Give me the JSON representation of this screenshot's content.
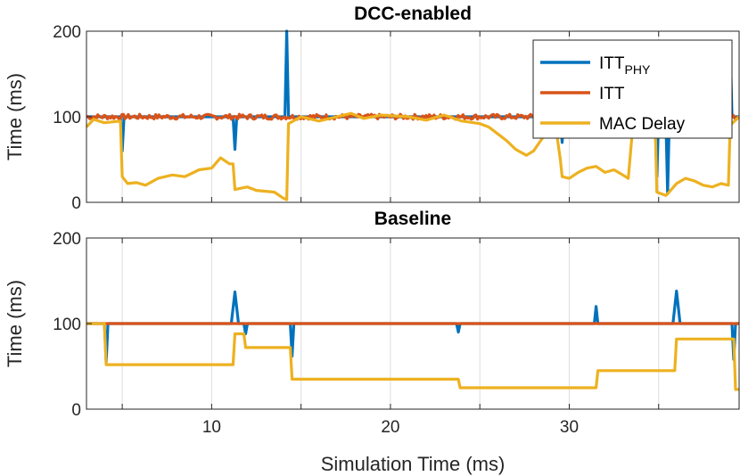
{
  "chart_data": [
    {
      "type": "line",
      "title": "DCC-enabled",
      "xlabel": "",
      "ylabel": "Time (ms)",
      "xlim": [
        3,
        39.5
      ],
      "ylim": [
        0,
        200
      ],
      "yticks": [
        "0",
        "100",
        "200"
      ],
      "grid": "vertical",
      "legend": "top-right",
      "series": [
        {
          "name": "ITT",
          "name_sub": "PHY",
          "color": "#0072BD",
          "points": [
            [
              3,
              100
            ],
            [
              4.9,
              100
            ],
            [
              5,
              60
            ],
            [
              5.1,
              100
            ],
            [
              11.2,
              100
            ],
            [
              11.3,
              62
            ],
            [
              11.4,
              100
            ],
            [
              14.1,
              100
            ],
            [
              14.2,
              200
            ],
            [
              14.3,
              100
            ],
            [
              29.5,
              100
            ],
            [
              29.6,
              70
            ],
            [
              29.7,
              100
            ],
            [
              34.8,
              100
            ],
            [
              34.9,
              30
            ],
            [
              35,
              100
            ],
            [
              35.4,
              100
            ],
            [
              35.5,
              10
            ],
            [
              35.6,
              100
            ],
            [
              38.9,
              100
            ],
            [
              39,
              188
            ],
            [
              39.1,
              100
            ],
            [
              39.5,
              100
            ]
          ]
        },
        {
          "name": "ITT",
          "color": "#D95319",
          "points": [
            [
              3,
              100
            ],
            [
              39.5,
              100
            ]
          ],
          "jitter": 3
        },
        {
          "name": "MAC Delay",
          "color": "#EDB120",
          "points": [
            [
              3,
              88
            ],
            [
              3.4,
              97
            ],
            [
              4,
              93
            ],
            [
              4.9,
              95
            ],
            [
              5,
              30
            ],
            [
              5.3,
              22
            ],
            [
              5.8,
              23
            ],
            [
              6.3,
              20
            ],
            [
              7,
              28
            ],
            [
              7.8,
              32
            ],
            [
              8.5,
              30
            ],
            [
              9.3,
              38
            ],
            [
              10,
              40
            ],
            [
              10.5,
              52
            ],
            [
              11,
              45
            ],
            [
              11.2,
              45
            ],
            [
              11.3,
              15
            ],
            [
              12,
              18
            ],
            [
              12.5,
              14
            ],
            [
              13.5,
              12
            ],
            [
              14,
              5
            ],
            [
              14.2,
              3
            ],
            [
              14.3,
              92
            ],
            [
              15,
              100
            ],
            [
              16,
              95
            ],
            [
              17,
              100
            ],
            [
              17.8,
              104
            ],
            [
              18.5,
              98
            ],
            [
              19.5,
              102
            ],
            [
              21,
              100
            ],
            [
              22,
              96
            ],
            [
              23,
              102
            ],
            [
              24,
              95
            ],
            [
              25,
              92
            ],
            [
              25.5,
              88
            ],
            [
              26,
              80
            ],
            [
              26.5,
              72
            ],
            [
              27,
              62
            ],
            [
              27.6,
              55
            ],
            [
              28,
              60
            ],
            [
              28.5,
              75
            ],
            [
              29,
              85
            ],
            [
              29.3,
              80
            ],
            [
              29.5,
              50
            ],
            [
              29.6,
              30
            ],
            [
              30,
              28
            ],
            [
              30.5,
              35
            ],
            [
              31,
              40
            ],
            [
              31.5,
              42
            ],
            [
              32,
              35
            ],
            [
              32.5,
              38
            ],
            [
              33,
              32
            ],
            [
              33.3,
              28
            ],
            [
              33.6,
              100
            ],
            [
              34.8,
              100
            ],
            [
              34.9,
              12
            ],
            [
              35.4,
              8
            ],
            [
              35.5,
              10
            ],
            [
              36,
              22
            ],
            [
              36.5,
              28
            ],
            [
              37,
              25
            ],
            [
              37.5,
              20
            ],
            [
              38,
              18
            ],
            [
              38.5,
              22
            ],
            [
              38.9,
              20
            ],
            [
              39,
              90
            ],
            [
              39.5,
              100
            ]
          ]
        }
      ]
    },
    {
      "type": "line",
      "title": "Baseline",
      "xlabel": "Simulation Time (ms)",
      "ylabel": "Time (ms)",
      "xlim": [
        3,
        39.5
      ],
      "ylim": [
        0,
        200
      ],
      "xticks": [
        "10",
        "20",
        "30"
      ],
      "yticks": [
        "0",
        "100",
        "200"
      ],
      "grid": "vertical",
      "series": [
        {
          "name": "ITT",
          "name_sub": "PHY",
          "color": "#0072BD",
          "points": [
            [
              3,
              100
            ],
            [
              4,
              100
            ],
            [
              4.1,
              55
            ],
            [
              4.2,
              100
            ],
            [
              11.1,
              100
            ],
            [
              11.3,
              137
            ],
            [
              11.5,
              100
            ],
            [
              11.8,
              100
            ],
            [
              11.9,
              88
            ],
            [
              12,
              100
            ],
            [
              14.4,
              100
            ],
            [
              14.5,
              62
            ],
            [
              14.6,
              100
            ],
            [
              23.7,
              100
            ],
            [
              23.8,
              90
            ],
            [
              23.9,
              100
            ],
            [
              31.4,
              100
            ],
            [
              31.5,
              120
            ],
            [
              31.6,
              100
            ],
            [
              35.8,
              100
            ],
            [
              36,
              138
            ],
            [
              36.2,
              100
            ],
            [
              39.1,
              100
            ],
            [
              39.2,
              58
            ],
            [
              39.3,
              100
            ],
            [
              39.5,
              100
            ]
          ]
        },
        {
          "name": "ITT",
          "color": "#D95319",
          "points": [
            [
              3,
              100
            ],
            [
              39.5,
              100
            ]
          ]
        },
        {
          "name": "MAC Delay",
          "color": "#EDB120",
          "points": [
            [
              3,
              100
            ],
            [
              4,
              100
            ],
            [
              4.1,
              52
            ],
            [
              11.2,
              52
            ],
            [
              11.3,
              88
            ],
            [
              11.8,
              88
            ],
            [
              11.9,
              72
            ],
            [
              14.4,
              72
            ],
            [
              14.5,
              35
            ],
            [
              23.8,
              35
            ],
            [
              23.9,
              25
            ],
            [
              31.5,
              25
            ],
            [
              31.6,
              45
            ],
            [
              35.9,
              45
            ],
            [
              36,
              82
            ],
            [
              39.2,
              82
            ],
            [
              39.3,
              23
            ],
            [
              39.5,
              23
            ]
          ]
        }
      ]
    }
  ]
}
